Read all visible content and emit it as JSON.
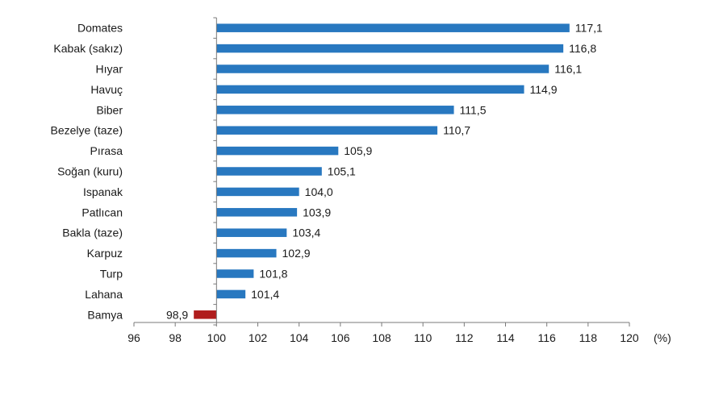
{
  "chart_data": {
    "type": "bar",
    "orientation": "horizontal",
    "baseline": 100,
    "categories": [
      "Domates",
      "Kabak (sakız)",
      "Hıyar",
      "Havuç",
      "Biber",
      "Bezelye (taze)",
      "Pırasa",
      "Soğan (kuru)",
      "Ispanak",
      "Patlıcan",
      "Bakla (taze)",
      "Karpuz",
      "Turp",
      "Lahana",
      "Bamya"
    ],
    "values": [
      117.1,
      116.8,
      116.1,
      114.9,
      111.5,
      110.7,
      105.9,
      105.1,
      104.0,
      103.9,
      103.4,
      102.9,
      101.8,
      101.4,
      98.9
    ],
    "value_labels": [
      "117,1",
      "116,8",
      "116,1",
      "114,9",
      "111,5",
      "110,7",
      "105,9",
      "105,1",
      "104,0",
      "103,9",
      "103,4",
      "102,9",
      "101,8",
      "101,4",
      "98,9"
    ],
    "xlim": [
      96,
      120
    ],
    "xticks": [
      96,
      98,
      100,
      102,
      104,
      106,
      108,
      110,
      112,
      114,
      116,
      118,
      120
    ],
    "xtick_labels": [
      "96",
      "98",
      "100",
      "102",
      "104",
      "106",
      "108",
      "110",
      "112",
      "114",
      "116",
      "118",
      "120"
    ],
    "x_unit": "(%)",
    "grid": false,
    "colors": {
      "above": "#2878c0",
      "below": "#b01c1c",
      "axis": "#7a7a7a"
    }
  }
}
